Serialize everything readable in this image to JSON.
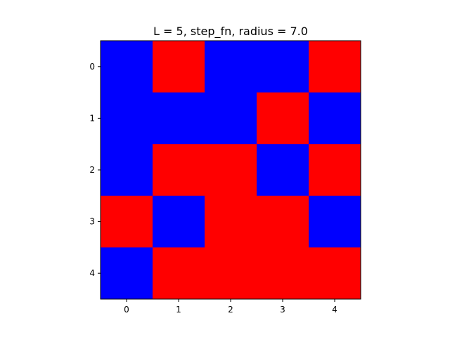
{
  "chart_data": {
    "type": "heatmap",
    "title": "L = 5, step_fn, radius = 7.0",
    "x_ticks": [
      "0",
      "1",
      "2",
      "3",
      "4"
    ],
    "y_ticks": [
      "0",
      "1",
      "2",
      "3",
      "4"
    ],
    "grid": [
      [
        0,
        1,
        0,
        0,
        1
      ],
      [
        0,
        0,
        0,
        1,
        0
      ],
      [
        0,
        1,
        1,
        0,
        1
      ],
      [
        1,
        0,
        1,
        1,
        0
      ],
      [
        0,
        1,
        1,
        1,
        1
      ]
    ],
    "colors": {
      "0": "#0000ff",
      "1": "#ff0000"
    },
    "grid_lines": false
  }
}
